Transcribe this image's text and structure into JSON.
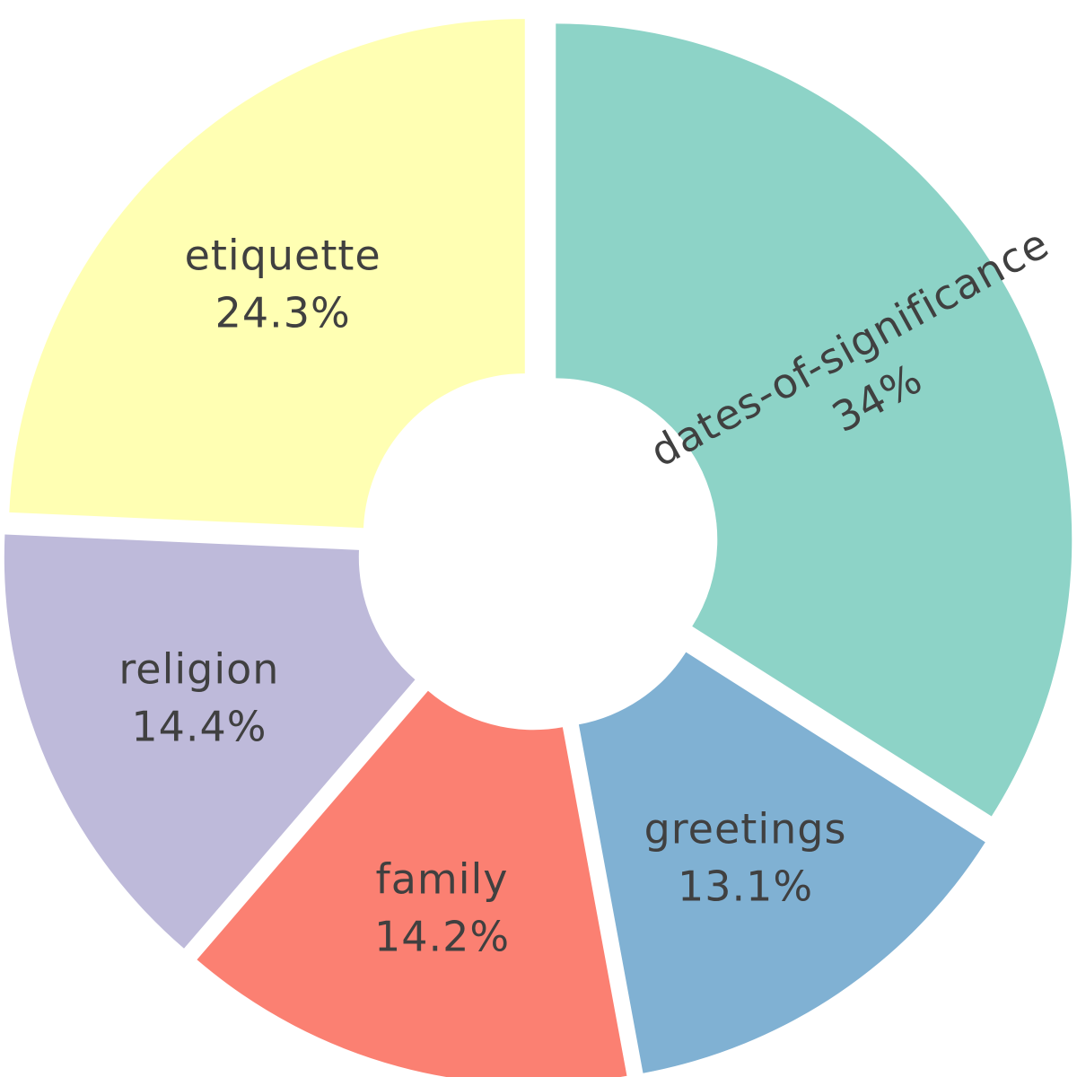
{
  "chart_data": {
    "type": "pie",
    "variant": "donut",
    "start_angle_deg": 90,
    "direction": "clockwise",
    "slices": [
      {
        "label": "dates-of-significance",
        "value": 34.0,
        "value_label": "34%",
        "color": "#8dd3c7"
      },
      {
        "label": "greetings",
        "value": 13.1,
        "value_label": "13.1%",
        "color": "#80b1d3"
      },
      {
        "label": "family",
        "value": 14.2,
        "value_label": "14.2%",
        "color": "#fb8072"
      },
      {
        "label": "religion",
        "value": 14.4,
        "value_label": "14.4%",
        "color": "#bebada"
      },
      {
        "label": "etiquette",
        "value": 24.3,
        "value_label": "24.3%",
        "color": "#ffffb3"
      }
    ],
    "text_color": "#404040"
  }
}
